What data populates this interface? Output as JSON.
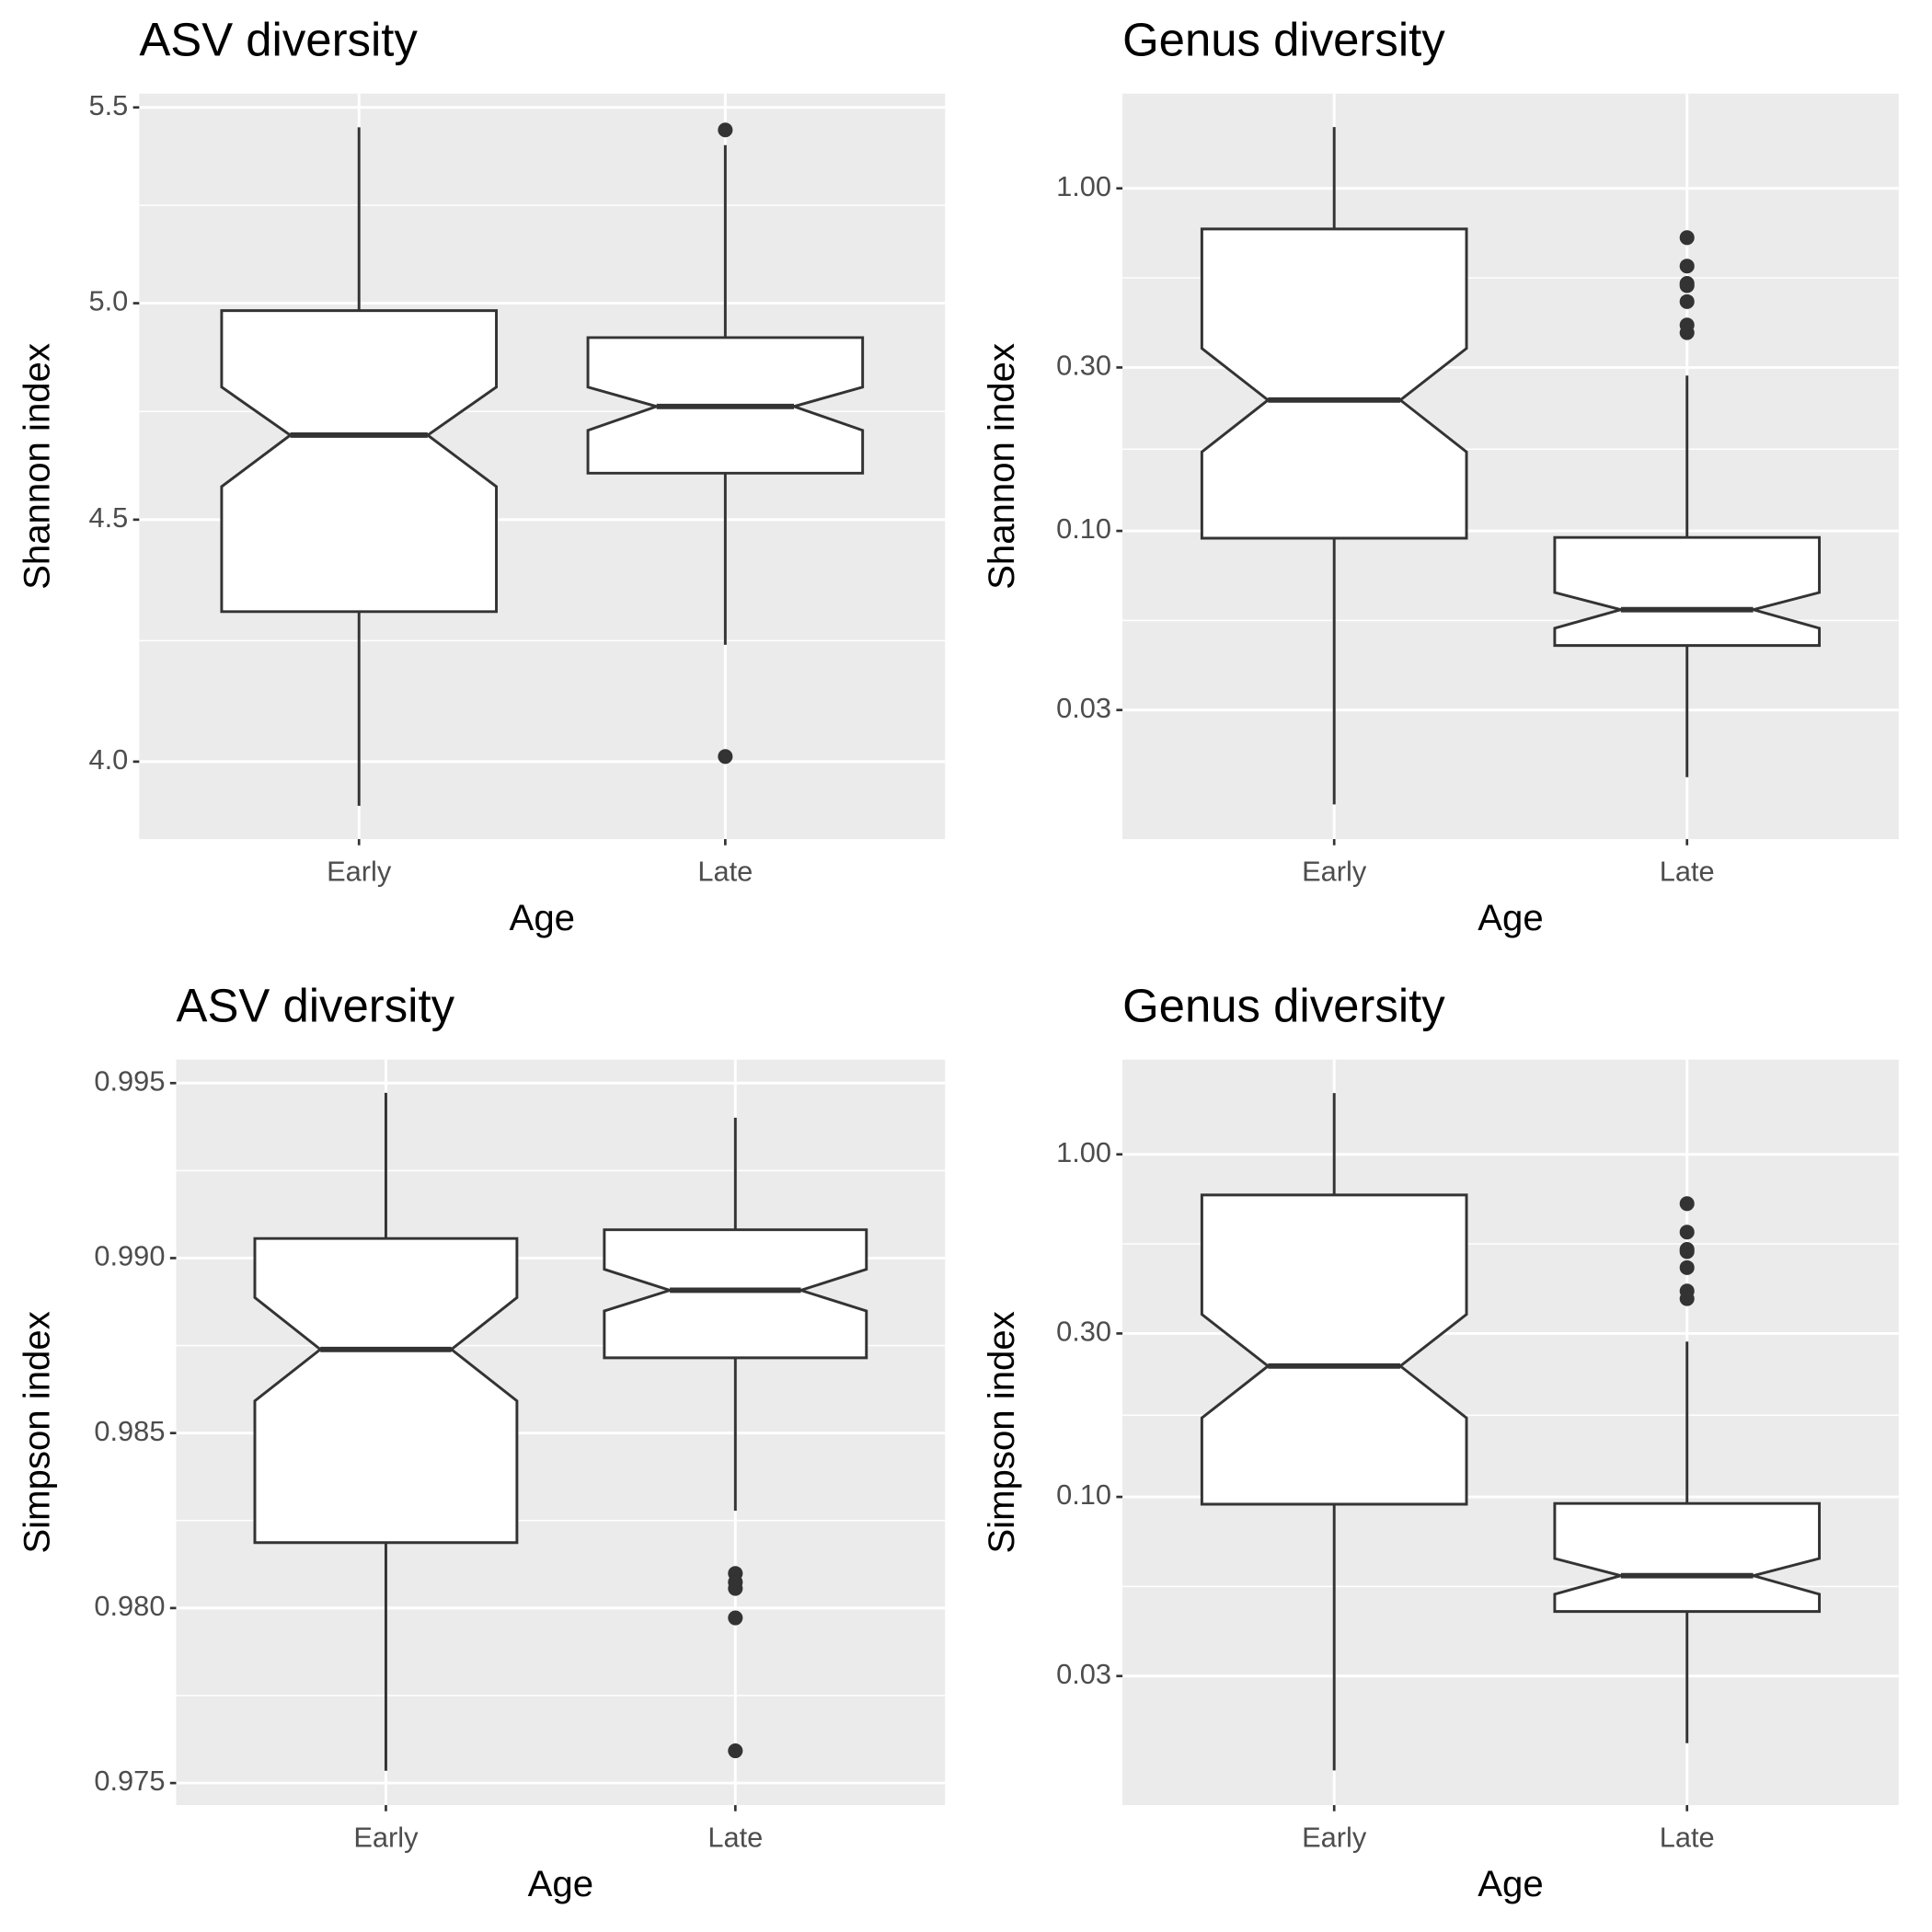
{
  "chart_data": [
    {
      "type": "boxplot",
      "title": "ASV diversity",
      "x_label": "Age",
      "y_label": "Shannon index",
      "categories": [
        "Early",
        "Late"
      ],
      "log_y": true,
      "grid": true,
      "ylim": [
        3.852,
        5.537
      ],
      "yticks": [
        {
          "value": 4,
          "label": "4.0"
        },
        4.5,
        {
          "value": 5,
          "label": "5.0"
        },
        5.5
      ],
      "boxes": [
        {
          "min": 3.915,
          "q1": 4.303,
          "notch_lower": 4.573,
          "median": 4.689,
          "notch_upper": 4.8,
          "q3": 4.982,
          "max": 5.447,
          "outliers": []
        },
        {
          "min": 4.234,
          "q1": 4.603,
          "notch_lower": 4.7,
          "median": 4.755,
          "notch_upper": 4.8,
          "q3": 4.917,
          "max": 5.4,
          "outliers": [
            5.44,
            4.01
          ]
        }
      ]
    },
    {
      "type": "boxplot",
      "title": "Genus diversity",
      "x_label": "Age",
      "y_label": "Shannon index",
      "categories": [
        "Early",
        "Late"
      ],
      "log_y": true,
      "grid": true,
      "ylim": [
        0.0126,
        1.89
      ],
      "yticks": [
        {
          "value": 0.03,
          "label": "0.03"
        },
        {
          "value": 0.1,
          "label": "0.10"
        },
        {
          "value": 0.3,
          "label": "0.30"
        },
        {
          "value": 1,
          "label": "1.00"
        }
      ],
      "boxes": [
        {
          "min": 0.0159,
          "q1": 0.0952,
          "notch_lower": 0.17,
          "median": 0.241,
          "notch_upper": 0.341,
          "q3": 0.761,
          "max": 1.51,
          "outliers": []
        },
        {
          "min": 0.0191,
          "q1": 0.0463,
          "notch_lower": 0.052,
          "median": 0.0589,
          "notch_upper": 0.0661,
          "q3": 0.0957,
          "max": 0.284,
          "outliers": [
            0.718,
            0.593,
            0.528,
            0.52,
            0.467,
            0.399,
            0.379
          ]
        }
      ]
    },
    {
      "type": "boxplot",
      "title": "ASV diversity",
      "x_label": "Age",
      "y_label": "Simpson index",
      "categories": [
        "Early",
        "Late"
      ],
      "log_y": false,
      "grid": true,
      "ylim": [
        0.97437,
        0.99567
      ],
      "yticks": [
        0.975,
        {
          "value": 0.98,
          "label": "0.980"
        },
        0.985,
        {
          "value": 0.99,
          "label": "0.990"
        },
        0.995
      ],
      "boxes": [
        {
          "min": 0.97535,
          "q1": 0.98187,
          "notch_lower": 0.98592,
          "median": 0.98739,
          "notch_upper": 0.98887,
          "q3": 0.99056,
          "max": 0.99472,
          "outliers": []
        },
        {
          "min": 0.98278,
          "q1": 0.98715,
          "notch_lower": 0.98849,
          "median": 0.98908,
          "notch_upper": 0.98968,
          "q3": 0.99081,
          "max": 0.99401,
          "outliers": [
            0.98099,
            0.98074,
            0.98056,
            0.97972,
            0.97592
          ]
        }
      ]
    },
    {
      "type": "boxplot",
      "title": "Genus diversity",
      "x_label": "Age",
      "y_label": "Simpson index",
      "categories": [
        "Early",
        "Late"
      ],
      "log_y": true,
      "grid": true,
      "ylim": [
        0.0126,
        1.89
      ],
      "yticks": [
        {
          "value": 0.03,
          "label": "0.03"
        },
        {
          "value": 0.1,
          "label": "0.10"
        },
        {
          "value": 0.3,
          "label": "0.30"
        },
        {
          "value": 1,
          "label": "1.00"
        }
      ],
      "boxes": [
        {
          "min": 0.0159,
          "q1": 0.0952,
          "notch_lower": 0.17,
          "median": 0.241,
          "notch_upper": 0.341,
          "q3": 0.761,
          "max": 1.51,
          "outliers": []
        },
        {
          "min": 0.0191,
          "q1": 0.0463,
          "notch_lower": 0.052,
          "median": 0.0589,
          "notch_upper": 0.0661,
          "q3": 0.0957,
          "max": 0.284,
          "outliers": [
            0.718,
            0.593,
            0.528,
            0.52,
            0.467,
            0.399,
            0.379
          ]
        }
      ]
    }
  ]
}
